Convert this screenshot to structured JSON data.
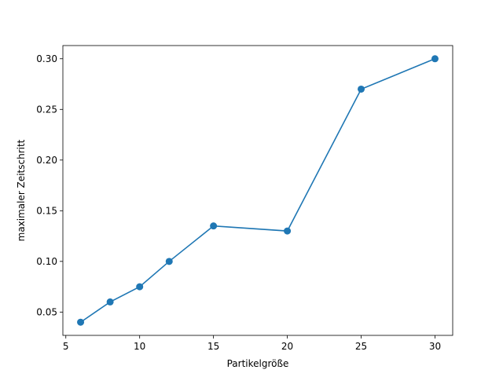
{
  "chart_data": {
    "type": "line",
    "title": "",
    "xlabel": "Partikelgröße",
    "ylabel": "maximaler Zeitschritt",
    "xlim": [
      4.8,
      31.2
    ],
    "ylim": [
      0.027,
      0.313
    ],
    "xticks": [
      5,
      10,
      15,
      20,
      25,
      30
    ],
    "xtick_labels": [
      "5",
      "10",
      "15",
      "20",
      "25",
      "30"
    ],
    "yticks": [
      0.05,
      0.1,
      0.15,
      0.2,
      0.25,
      0.3
    ],
    "ytick_labels": [
      "0.05",
      "0.10",
      "0.15",
      "0.20",
      "0.25",
      "0.30"
    ],
    "grid": false,
    "legend": "none",
    "series": [
      {
        "color": "#1f77b4",
        "marker": "circle",
        "x": [
          6,
          8,
          10,
          12,
          15,
          20,
          25,
          30
        ],
        "y": [
          0.04,
          0.06,
          0.075,
          0.1,
          0.135,
          0.13,
          0.27,
          0.3
        ]
      }
    ]
  }
}
